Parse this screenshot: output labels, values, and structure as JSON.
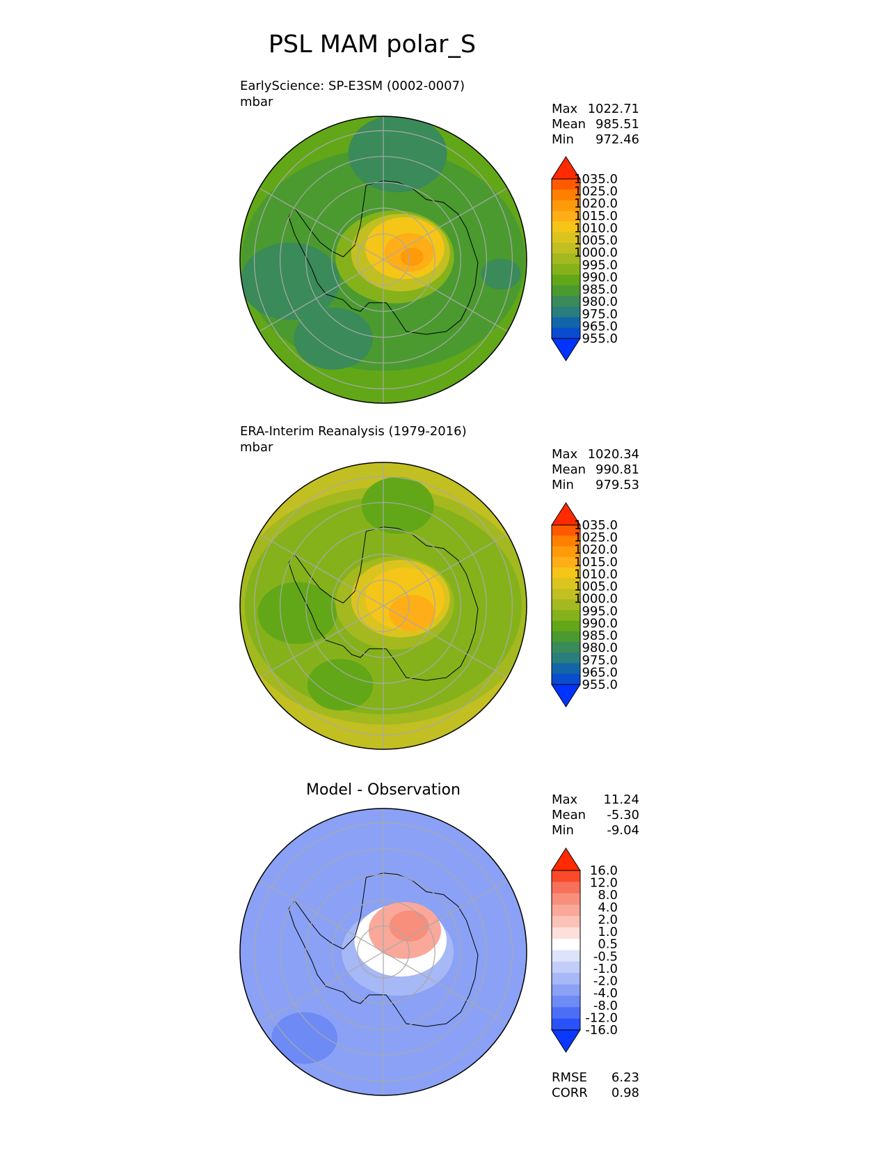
{
  "chart_data": {
    "type": "contour-map",
    "title": "PSL MAM polar_S",
    "panels": [
      {
        "id": "model",
        "label": "EarlyScience: SP-E3SM (0002-0007)",
        "units": "mbar",
        "stats": [
          {
            "label": "Max",
            "value": "1022.71"
          },
          {
            "label": "Mean",
            "value": "985.51"
          },
          {
            "label": "Min",
            "value": "972.46"
          }
        ],
        "colorbar": {
          "ticks": [
            "1035.0",
            "1025.0",
            "1020.0",
            "1015.0",
            "1010.0",
            "1005.0",
            "1000.0",
            "995.0",
            "990.0",
            "985.0",
            "980.0",
            "975.0",
            "965.0",
            "955.0"
          ],
          "colors": [
            "#ff2a00",
            "#ff5a00",
            "#ff7f00",
            "#ff9a0a",
            "#ffae17",
            "#f5c518",
            "#dcc41f",
            "#c2bf22",
            "#a3b91f",
            "#85b21b",
            "#62a718",
            "#4a9a2f",
            "#3a8a5a",
            "#2a7e7e",
            "#1266a8",
            "#0a4ccf",
            "#0033ff"
          ],
          "regions": [
            {
              "level": 983,
              "r": 1.0,
              "cx": 0,
              "cy": 0
            },
            {
              "level": 978,
              "r": 0.86,
              "cx": 0,
              "cy": 0
            },
            {
              "level": 972,
              "r": 0.3,
              "cx": 0.1,
              "cy": -0.74
            },
            {
              "level": 972,
              "r": 0.3,
              "cx": -0.65,
              "cy": 0.15
            },
            {
              "level": 972,
              "r": 0.24,
              "cx": -0.35,
              "cy": 0.55
            },
            {
              "level": 972,
              "r": 0.12,
              "cx": 0.82,
              "cy": 0.1
            },
            {
              "level": 988,
              "r": 0.36,
              "cx": 0.08,
              "cy": -0.02
            },
            {
              "level": 995,
              "r": 0.3,
              "cx": 0.12,
              "cy": -0.05
            },
            {
              "level": 1005,
              "r": 0.24,
              "cx": 0.15,
              "cy": -0.08
            },
            {
              "level": 1012,
              "r": 0.15,
              "cx": 0.18,
              "cy": -0.05
            },
            {
              "level": 1018,
              "r": 0.07,
              "cx": 0.2,
              "cy": -0.02
            }
          ]
        }
      },
      {
        "id": "obs",
        "label": "ERA-Interim Reanalysis (1979-2016)",
        "units": "mbar",
        "stats": [
          {
            "label": "Max",
            "value": "1020.34"
          },
          {
            "label": "Mean",
            "value": "990.81"
          },
          {
            "label": "Min",
            "value": "979.53"
          }
        ],
        "colorbar": {
          "ticks": [
            "1035.0",
            "1025.0",
            "1020.0",
            "1015.0",
            "1010.0",
            "1005.0",
            "1000.0",
            "995.0",
            "990.0",
            "985.0",
            "980.0",
            "975.0",
            "965.0",
            "955.0"
          ],
          "colors": [
            "#ff2a00",
            "#ff5a00",
            "#ff7f00",
            "#ff9a0a",
            "#ffae17",
            "#f5c518",
            "#dcc41f",
            "#c2bf22",
            "#a3b91f",
            "#85b21b",
            "#62a718",
            "#4a9a2f",
            "#3a8a5a",
            "#2a7e7e",
            "#1266a8",
            "#0a4ccf",
            "#0033ff"
          ],
          "regions": [
            {
              "level": 996,
              "r": 1.0,
              "cx": 0,
              "cy": 0
            },
            {
              "level": 990,
              "r": 0.92,
              "cx": 0,
              "cy": 0
            },
            {
              "level": 985,
              "r": 0.84,
              "cx": 0,
              "cy": 0
            },
            {
              "level": 983,
              "r": 0.22,
              "cx": 0.1,
              "cy": -0.7
            },
            {
              "level": 983,
              "r": 0.24,
              "cx": -0.6,
              "cy": 0.05
            },
            {
              "level": 983,
              "r": 0.2,
              "cx": -0.3,
              "cy": 0.55
            },
            {
              "level": 992,
              "r": 0.36,
              "cx": 0.08,
              "cy": -0.02
            },
            {
              "level": 1000,
              "r": 0.3,
              "cx": 0.12,
              "cy": -0.05
            },
            {
              "level": 1007,
              "r": 0.24,
              "cx": 0.15,
              "cy": -0.05
            },
            {
              "level": 1014,
              "r": 0.14,
              "cx": 0.2,
              "cy": 0.05
            }
          ]
        }
      },
      {
        "id": "diff",
        "title": "Model - Observation",
        "stats": [
          {
            "label": "Max",
            "value": "11.24"
          },
          {
            "label": "Mean",
            "value": "-5.30"
          },
          {
            "label": "Min",
            "value": "-9.04"
          }
        ],
        "metrics": [
          {
            "label": "RMSE",
            "value": "6.23"
          },
          {
            "label": "CORR",
            "value": "0.98"
          }
        ],
        "colorbar": {
          "ticks": [
            "16.0",
            "12.0",
            "8.0",
            "4.0",
            "2.0",
            "1.0",
            "0.5",
            "-0.5",
            "-1.0",
            "-2.0",
            "-4.0",
            "-8.0",
            "-12.0",
            "-16.0"
          ],
          "colors": [
            "#ff2a00",
            "#fa4a2a",
            "#f8705a",
            "#f88e7c",
            "#f9a89a",
            "#fbc3b8",
            "#fde0da",
            "#ffffff",
            "#dde3fb",
            "#c2cdf8",
            "#a7b8f6",
            "#8aa1f5",
            "#6d8af5",
            "#4a6ef5",
            "#2a52fa",
            "#0a38ff"
          ],
          "regions": [
            {
              "level": -6,
              "r": 1.0,
              "cx": 0,
              "cy": 0
            },
            {
              "level": -10,
              "r": 0.2,
              "cx": -0.55,
              "cy": 0.6
            },
            {
              "level": -3,
              "r": 0.34,
              "cx": 0.1,
              "cy": 0.0
            },
            {
              "level": 0,
              "r": 0.28,
              "cx": 0.12,
              "cy": -0.08
            },
            {
              "level": 3,
              "r": 0.22,
              "cx": 0.15,
              "cy": -0.15
            },
            {
              "level": 6,
              "r": 0.12,
              "cx": 0.18,
              "cy": -0.18
            }
          ]
        }
      }
    ]
  }
}
